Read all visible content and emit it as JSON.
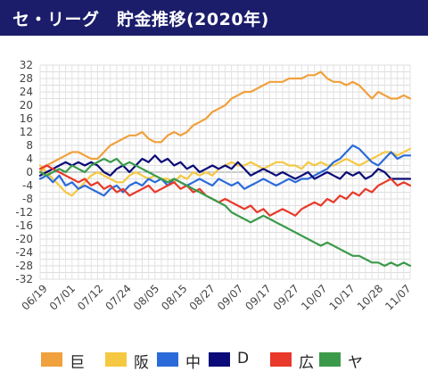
{
  "header": {
    "title": "セ・リーグ　貯金推移(2020年)",
    "background": "#1b1d6b"
  },
  "chart_data": {
    "type": "line",
    "title": "セ・リーグ　貯金推移(2020年)",
    "xlabel": "",
    "ylabel": "",
    "ylim": [
      -32,
      32
    ],
    "yticks": [
      32,
      28,
      24,
      20,
      16,
      12,
      8,
      4,
      0,
      -4,
      -8,
      -12,
      -16,
      -20,
      -24,
      -28,
      -32
    ],
    "x_tick_labels": [
      "06/19",
      "07/01",
      "07/12",
      "07/24",
      "08/05",
      "08/15",
      "08/27",
      "09/07",
      "09/17",
      "09/27",
      "10/07",
      "10/17",
      "10/28",
      "11/07"
    ],
    "grid": true,
    "legend_position": "bottom",
    "series": [
      {
        "name": "巨",
        "color": "#f0a03c",
        "x": [
          0,
          2,
          4,
          6,
          8,
          10,
          12,
          14,
          16,
          18,
          20,
          22,
          24,
          26,
          28,
          30,
          32,
          34,
          36,
          38,
          40,
          42,
          44,
          46,
          48,
          50,
          52,
          54,
          56,
          58,
          60,
          62,
          64,
          66,
          68,
          70,
          72,
          74,
          76,
          78,
          80,
          82,
          84,
          86,
          88,
          90,
          92,
          94,
          96,
          98,
          100,
          102,
          104,
          106,
          108,
          110,
          112,
          114,
          116
        ],
        "values": [
          0,
          2,
          3,
          4,
          5,
          6,
          6,
          5,
          4,
          4,
          6,
          8,
          9,
          10,
          11,
          11,
          12,
          10,
          9,
          9,
          11,
          12,
          11,
          12,
          14,
          15,
          16,
          18,
          19,
          20,
          22,
          23,
          24,
          24,
          25,
          26,
          27,
          27,
          27,
          28,
          28,
          28,
          29,
          29,
          30,
          28,
          27,
          27,
          26,
          27,
          26,
          24,
          22,
          24,
          23,
          22,
          22,
          23,
          22
        ]
      },
      {
        "name": "阪",
        "color": "#f5c842",
        "x": [
          0,
          2,
          4,
          6,
          8,
          10,
          12,
          14,
          16,
          18,
          20,
          22,
          24,
          26,
          28,
          30,
          32,
          34,
          36,
          38,
          40,
          42,
          44,
          46,
          48,
          50,
          52,
          54,
          56,
          58,
          60,
          62,
          64,
          66,
          68,
          70,
          72,
          74,
          76,
          78,
          80,
          82,
          84,
          86,
          88,
          90,
          92,
          94,
          96,
          98,
          100,
          102,
          104,
          106,
          108,
          110,
          112,
          114,
          116
        ],
        "values": [
          2,
          0,
          -2,
          -4,
          -6,
          -7,
          -5,
          -3,
          -1,
          0,
          -1,
          -2,
          -3,
          -3,
          -1,
          0,
          -1,
          -2,
          -1,
          -2,
          -2,
          -3,
          -1,
          -2,
          0,
          -1,
          0,
          -1,
          1,
          2,
          3,
          2,
          2,
          3,
          2,
          1,
          2,
          3,
          3,
          2,
          2,
          1,
          3,
          2,
          3,
          2,
          2,
          3,
          4,
          3,
          2,
          3,
          4,
          5,
          6,
          6,
          5,
          6,
          7
        ]
      },
      {
        "name": "中",
        "color": "#2b6bd9",
        "x": [
          0,
          2,
          4,
          6,
          8,
          10,
          12,
          14,
          16,
          18,
          20,
          22,
          24,
          26,
          28,
          30,
          32,
          34,
          36,
          38,
          40,
          42,
          44,
          46,
          48,
          50,
          52,
          54,
          56,
          58,
          60,
          62,
          64,
          66,
          68,
          70,
          72,
          74,
          76,
          78,
          80,
          82,
          84,
          86,
          88,
          90,
          92,
          94,
          96,
          98,
          100,
          102,
          104,
          106,
          108,
          110,
          112,
          114,
          116
        ],
        "values": [
          -2,
          -1,
          -3,
          -1,
          -4,
          -3,
          -5,
          -4,
          -5,
          -6,
          -7,
          -5,
          -4,
          -6,
          -4,
          -3,
          -4,
          -2,
          -3,
          -2,
          -4,
          -2,
          -3,
          -4,
          -3,
          -2,
          -3,
          -4,
          -2,
          -3,
          -4,
          -3,
          -5,
          -4,
          -3,
          -2,
          -3,
          -4,
          -3,
          -2,
          -3,
          -2,
          -2,
          -1,
          0,
          1,
          3,
          4,
          6,
          8,
          7,
          5,
          3,
          2,
          4,
          6,
          4,
          5,
          5
        ]
      },
      {
        "name": "D",
        "color": "#0a0a78",
        "x": [
          0,
          2,
          4,
          6,
          8,
          10,
          12,
          14,
          16,
          18,
          20,
          22,
          24,
          26,
          28,
          30,
          32,
          34,
          36,
          38,
          40,
          42,
          44,
          46,
          48,
          50,
          52,
          54,
          56,
          58,
          60,
          62,
          64,
          66,
          68,
          70,
          72,
          74,
          76,
          78,
          80,
          82,
          84,
          86,
          88,
          90,
          92,
          94,
          96,
          98,
          100,
          102,
          104,
          106,
          108,
          110,
          112,
          114,
          116
        ],
        "values": [
          -1,
          0,
          1,
          2,
          3,
          2,
          3,
          2,
          3,
          2,
          0,
          -1,
          1,
          2,
          0,
          2,
          4,
          3,
          5,
          3,
          4,
          2,
          3,
          1,
          2,
          0,
          1,
          2,
          1,
          2,
          1,
          3,
          1,
          -1,
          0,
          1,
          0,
          -1,
          0,
          -1,
          -2,
          -1,
          0,
          -2,
          -1,
          0,
          -1,
          -2,
          0,
          -1,
          0,
          -2,
          -1,
          1,
          0,
          -2,
          -2,
          -2,
          -2
        ]
      },
      {
        "name": "広",
        "color": "#e8392a",
        "x": [
          0,
          2,
          4,
          6,
          8,
          10,
          12,
          14,
          16,
          18,
          20,
          22,
          24,
          26,
          28,
          30,
          32,
          34,
          36,
          38,
          40,
          42,
          44,
          46,
          48,
          50,
          52,
          54,
          56,
          58,
          60,
          62,
          64,
          66,
          68,
          70,
          72,
          74,
          76,
          78,
          80,
          82,
          84,
          86,
          88,
          90,
          92,
          94,
          96,
          98,
          100,
          102,
          104,
          106,
          108,
          110,
          112,
          114,
          116
        ],
        "values": [
          1,
          2,
          1,
          0,
          -1,
          -2,
          -3,
          -2,
          -4,
          -3,
          -5,
          -4,
          -6,
          -5,
          -7,
          -6,
          -5,
          -4,
          -6,
          -5,
          -4,
          -3,
          -5,
          -4,
          -6,
          -5,
          -7,
          -8,
          -9,
          -8,
          -9,
          -10,
          -11,
          -10,
          -12,
          -11,
          -13,
          -12,
          -11,
          -12,
          -13,
          -11,
          -10,
          -9,
          -10,
          -8,
          -9,
          -7,
          -8,
          -6,
          -7,
          -5,
          -6,
          -4,
          -3,
          -2,
          -4,
          -3,
          -4
        ]
      },
      {
        "name": "ヤ",
        "color": "#3a9a4a",
        "x": [
          0,
          2,
          4,
          6,
          8,
          10,
          12,
          14,
          16,
          18,
          20,
          22,
          24,
          26,
          28,
          30,
          32,
          34,
          36,
          38,
          40,
          42,
          44,
          46,
          48,
          50,
          52,
          54,
          56,
          58,
          60,
          62,
          64,
          66,
          68,
          70,
          72,
          74,
          76,
          78,
          80,
          82,
          84,
          86,
          88,
          90,
          92,
          94,
          96,
          98,
          100,
          102,
          104,
          106,
          108,
          110,
          112,
          114,
          116
        ],
        "values": [
          0,
          -1,
          0,
          1,
          0,
          2,
          1,
          0,
          2,
          3,
          4,
          3,
          4,
          2,
          3,
          2,
          1,
          0,
          -1,
          -2,
          -3,
          -2,
          -3,
          -4,
          -5,
          -6,
          -7,
          -8,
          -9,
          -10,
          -12,
          -13,
          -14,
          -15,
          -14,
          -13,
          -14,
          -15,
          -16,
          -17,
          -18,
          -19,
          -20,
          -21,
          -22,
          -21,
          -22,
          -23,
          -24,
          -25,
          -25,
          -26,
          -27,
          -27,
          -28,
          -27,
          -28,
          -27,
          -28
        ]
      }
    ]
  }
}
